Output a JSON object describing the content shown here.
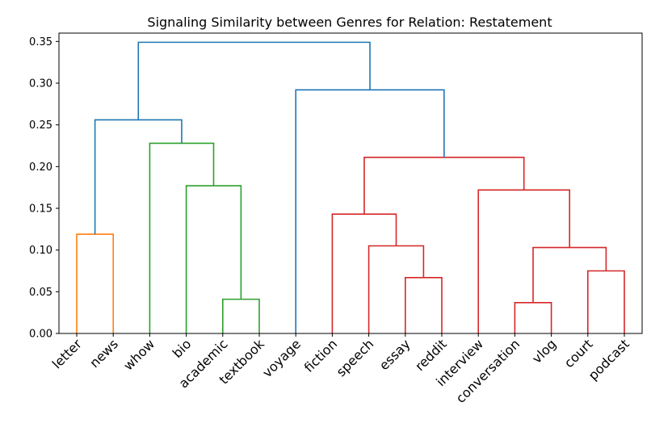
{
  "chart_data": {
    "type": "dendrogram",
    "title": "Signaling Similarity between Genres for Relation: Restatement",
    "xlabel": "",
    "ylabel": "",
    "ylim": [
      0,
      0.36
    ],
    "yticks": [
      "0.00",
      "0.05",
      "0.10",
      "0.15",
      "0.20",
      "0.25",
      "0.30",
      "0.35"
    ],
    "ytick_values": [
      0,
      0.05,
      0.1,
      0.15,
      0.2,
      0.25,
      0.3,
      0.35
    ],
    "leaves": [
      "letter",
      "news",
      "whow",
      "bio",
      "academic",
      "textbook",
      "voyage",
      "fiction",
      "speech",
      "essay",
      "reddit",
      "interview",
      "conversation",
      "vlog",
      "court",
      "podcast"
    ],
    "colors": {
      "orange": "#ff7f0e",
      "green": "#2ca02c",
      "red": "#d62728",
      "blue": "#1f77b4"
    },
    "links": [
      {
        "left": 0,
        "right": 1,
        "height": 0.119,
        "color": "orange"
      },
      {
        "left": 4,
        "right": 5,
        "height": 0.041,
        "color": "green"
      },
      {
        "left": 3,
        "right": "n2",
        "height": 0.177,
        "color": "green"
      },
      {
        "left": 2,
        "right": "n3",
        "height": 0.228,
        "color": "green"
      },
      {
        "left": "n1",
        "right": "n4",
        "height": 0.256,
        "color": "blue"
      },
      {
        "left": 9,
        "right": 10,
        "height": 0.067,
        "color": "red"
      },
      {
        "left": 8,
        "right": "n6",
        "height": 0.105,
        "color": "red"
      },
      {
        "left": 7,
        "right": "n7",
        "height": 0.143,
        "color": "red"
      },
      {
        "left": 12,
        "right": 13,
        "height": 0.037,
        "color": "red"
      },
      {
        "left": 14,
        "right": 15,
        "height": 0.075,
        "color": "red"
      },
      {
        "left": "n9",
        "right": "n10",
        "height": 0.103,
        "color": "red"
      },
      {
        "left": 11,
        "right": "n11",
        "height": 0.172,
        "color": "red"
      },
      {
        "left": "n8",
        "right": "n12",
        "height": 0.211,
        "color": "red"
      },
      {
        "left": 6,
        "right": "n13",
        "height": 0.292,
        "color": "blue"
      },
      {
        "left": "n5",
        "right": "n14",
        "height": 0.349,
        "color": "blue"
      }
    ]
  }
}
